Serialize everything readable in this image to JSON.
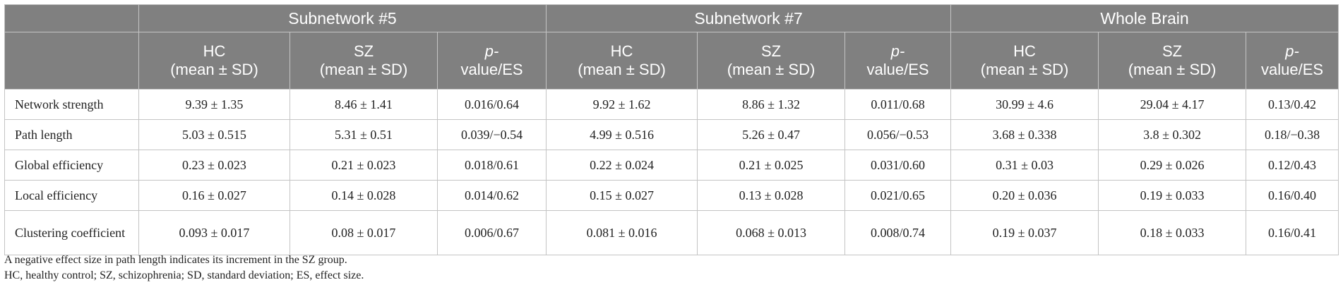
{
  "table": {
    "groups": [
      "Subnetwork #5",
      "Subnetwork #7",
      "Whole Brain"
    ],
    "hc_label": "HC",
    "sz_label": "SZ",
    "mean_sd": "(mean ± SD)",
    "p_label": "p-",
    "es_label": "value/ES",
    "rows": [
      {
        "label": "Network strength",
        "values": [
          "9.39 ± 1.35",
          "8.46 ± 1.41",
          "0.016/0.64",
          "9.92 ± 1.62",
          "8.86 ± 1.32",
          "0.011/0.68",
          "30.99 ± 4.6",
          "29.04 ± 4.17",
          "0.13/0.42"
        ]
      },
      {
        "label": "Path length",
        "values": [
          "5.03 ± 0.515",
          "5.31 ± 0.51",
          "0.039/−0.54",
          "4.99 ± 0.516",
          "5.26 ± 0.47",
          "0.056/−0.53",
          "3.68 ± 0.338",
          "3.8 ± 0.302",
          "0.18/−0.38"
        ]
      },
      {
        "label": "Global efficiency",
        "values": [
          "0.23 ± 0.023",
          "0.21 ± 0.023",
          "0.018/0.61",
          "0.22 ± 0.024",
          "0.21 ± 0.025",
          "0.031/0.60",
          "0.31 ± 0.03",
          "0.29 ± 0.026",
          "0.12/0.43"
        ]
      },
      {
        "label": "Local efficiency",
        "values": [
          "0.16 ± 0.027",
          "0.14 ± 0.028",
          "0.014/0.62",
          "0.15 ± 0.027",
          "0.13 ± 0.028",
          "0.021/0.65",
          "0.20 ± 0.036",
          "0.19 ± 0.033",
          "0.16/0.40"
        ]
      },
      {
        "label": "Clustering coefficient",
        "values": [
          "0.093 ± 0.017",
          "0.08 ± 0.017",
          "0.006/0.67",
          "0.081 ± 0.016",
          "0.068 ± 0.013",
          "0.008/0.74",
          "0.19 ± 0.037",
          "0.18 ± 0.033",
          "0.16/0.41"
        ]
      }
    ]
  },
  "notes": [
    "A negative effect size in path length indicates its increment in the SZ group.",
    "HC, healthy control; SZ, schizophrenia; SD, standard deviation; ES, effect size."
  ]
}
